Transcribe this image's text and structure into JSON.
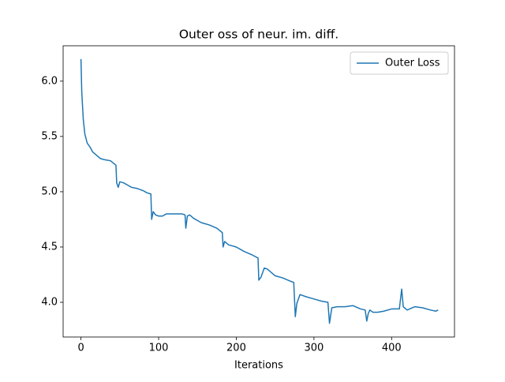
{
  "chart_data": {
    "type": "line",
    "title": "Outer oss of neur. im. diff.",
    "xlabel": "Iterations",
    "x": [
      0,
      1,
      3,
      5,
      8,
      12,
      15,
      20,
      25,
      30,
      38,
      45,
      46,
      48,
      50,
      55,
      60,
      65,
      72,
      80,
      85,
      90,
      91,
      93,
      96,
      100,
      105,
      110,
      120,
      130,
      134,
      135,
      137,
      140,
      145,
      150,
      155,
      165,
      175,
      182,
      183,
      185,
      190,
      195,
      200,
      210,
      220,
      228,
      229,
      232,
      236,
      240,
      250,
      260,
      270,
      274,
      276,
      278,
      282,
      290,
      300,
      310,
      318,
      320,
      323,
      330,
      340,
      350,
      360,
      366,
      368,
      370,
      372,
      376,
      382,
      390,
      400,
      410,
      413,
      415,
      420,
      430,
      440,
      450,
      457,
      460
    ],
    "series": [
      {
        "name": "Outer Loss",
        "color": "#1f77b4",
        "values": [
          6.2,
          5.9,
          5.65,
          5.52,
          5.44,
          5.4,
          5.36,
          5.33,
          5.3,
          5.29,
          5.28,
          5.24,
          5.08,
          5.04,
          5.09,
          5.08,
          5.06,
          5.04,
          5.03,
          5.01,
          4.99,
          4.98,
          4.75,
          4.82,
          4.79,
          4.78,
          4.78,
          4.8,
          4.8,
          4.8,
          4.79,
          4.67,
          4.78,
          4.79,
          4.76,
          4.74,
          4.72,
          4.7,
          4.67,
          4.63,
          4.5,
          4.55,
          4.52,
          4.51,
          4.5,
          4.46,
          4.43,
          4.4,
          4.2,
          4.23,
          4.31,
          4.3,
          4.24,
          4.22,
          4.19,
          4.18,
          3.87,
          3.99,
          4.07,
          4.05,
          4.03,
          4.01,
          4.0,
          3.81,
          3.95,
          3.96,
          3.96,
          3.97,
          3.94,
          3.93,
          3.83,
          3.9,
          3.93,
          3.91,
          3.91,
          3.92,
          3.94,
          3.94,
          4.12,
          3.96,
          3.93,
          3.96,
          3.95,
          3.93,
          3.92,
          3.93
        ]
      }
    ],
    "xlim": [
      -23,
      481
    ],
    "ylim": [
      3.686,
      6.32
    ],
    "xticks": [
      0,
      100,
      200,
      300,
      400
    ],
    "yticks": [
      {
        "value": 4.0,
        "label": "4.0"
      },
      4.5,
      {
        "value": 5.0,
        "label": "5.0"
      },
      5.5,
      {
        "value": 6.0,
        "label": "6.0"
      }
    ],
    "legend": "upper right"
  }
}
